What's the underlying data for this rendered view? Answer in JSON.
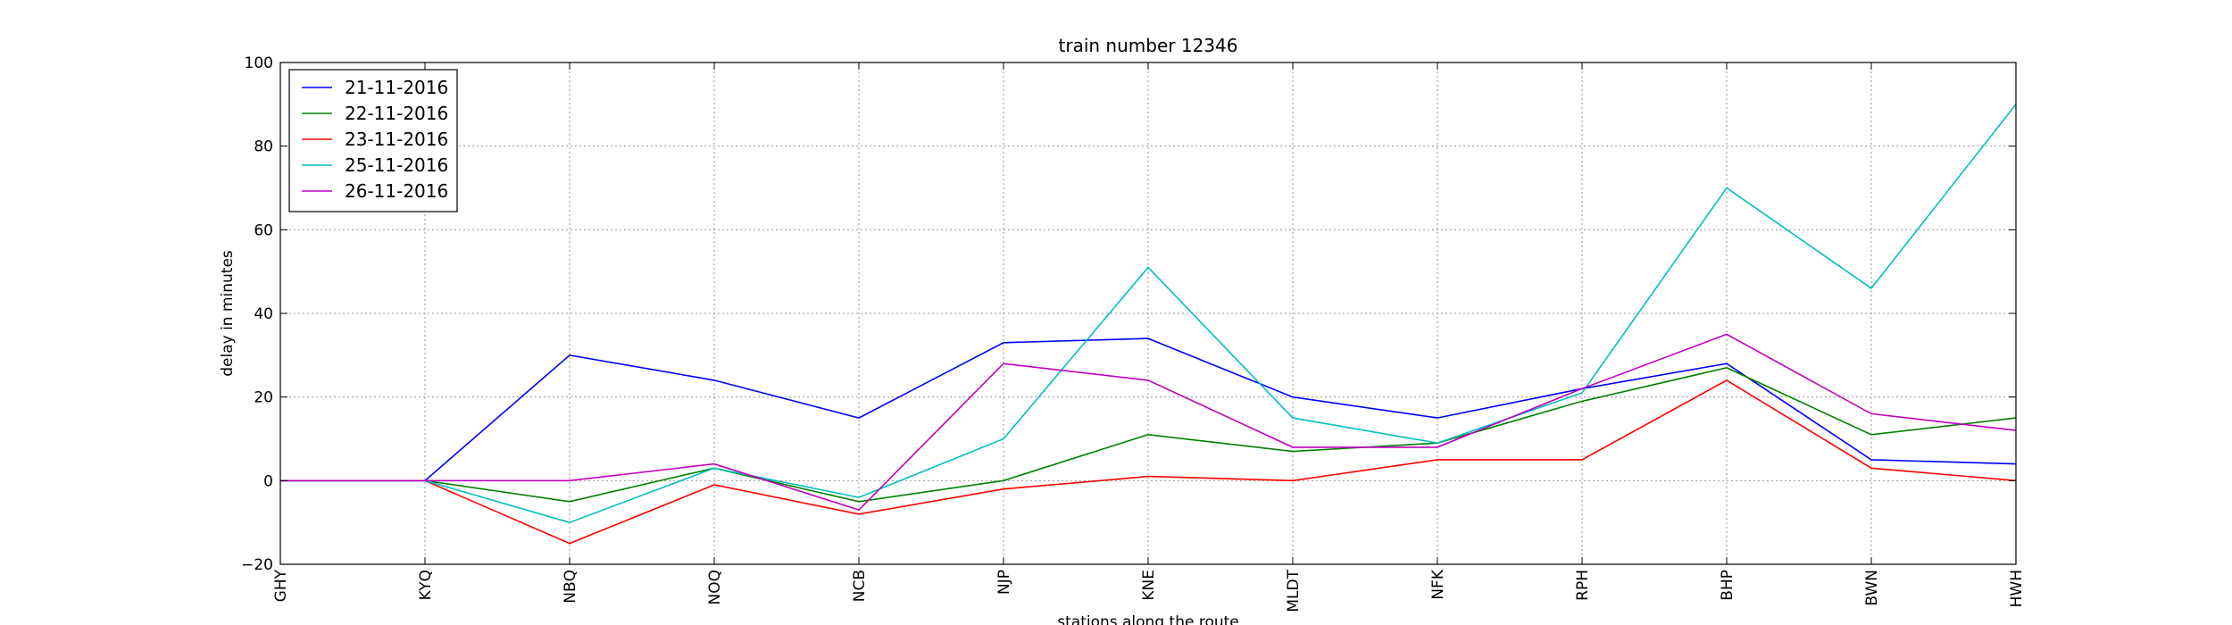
{
  "chart_data": {
    "type": "line",
    "title": "train number 12346",
    "xlabel": "stations along the route",
    "ylabel": "delay in minutes",
    "categories": [
      "GHY",
      "KYQ",
      "NBQ",
      "NOQ",
      "NCB",
      "NJP",
      "KNE",
      "MLDT",
      "NFK",
      "RPH",
      "BHP",
      "BWN",
      "HWH"
    ],
    "ylim": [
      -20,
      100
    ],
    "yticks": [
      -20,
      0,
      20,
      40,
      60,
      80,
      100
    ],
    "grid": true,
    "legend_position": "top-left",
    "series": [
      {
        "name": "21-11-2016",
        "color": "#0000ff",
        "values": [
          0,
          0,
          30,
          24,
          15,
          33,
          34,
          20,
          15,
          22,
          28,
          5,
          4
        ]
      },
      {
        "name": "22-11-2016",
        "color": "#008000",
        "values": [
          0,
          0,
          -5,
          3,
          -5,
          0,
          11,
          7,
          9,
          19,
          27,
          11,
          15
        ]
      },
      {
        "name": "23-11-2016",
        "color": "#ff0000",
        "values": [
          0,
          0,
          -15,
          -1,
          -8,
          -2,
          1,
          0,
          5,
          5,
          24,
          3,
          0
        ]
      },
      {
        "name": "25-11-2016",
        "color": "#00bfbf",
        "values": [
          0,
          0,
          -10,
          3,
          -4,
          10,
          51,
          15,
          9,
          21,
          70,
          46,
          90
        ]
      },
      {
        "name": "26-11-2016",
        "color": "#bf00bf",
        "values": [
          0,
          0,
          0,
          4,
          -7,
          28,
          24,
          8,
          8,
          22,
          35,
          16,
          12
        ]
      }
    ]
  }
}
